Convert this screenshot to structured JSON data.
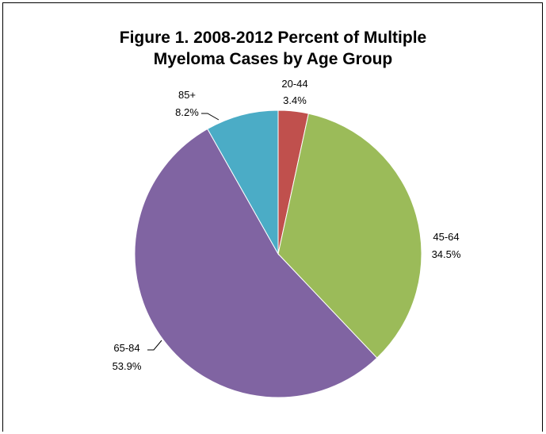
{
  "chart_data": {
    "type": "pie",
    "title": [
      "Figure 1.  2008-2012 Percent of Multiple",
      "Myeloma Cases by Age Group"
    ],
    "slices": [
      {
        "label": "20-44",
        "value": 3.4,
        "value_label": "3.4%",
        "color": "#c0504d"
      },
      {
        "label": "45-64",
        "value": 34.5,
        "value_label": "34.5%",
        "color": "#9bbb59"
      },
      {
        "label": "65-84",
        "value": 53.9,
        "value_label": "53.9%",
        "color": "#8064a2"
      },
      {
        "label": "85+",
        "value": 8.2,
        "value_label": "8.2%",
        "color": "#4bacc6"
      }
    ],
    "start_angle": "12 o'clock",
    "direction": "clockwise"
  }
}
